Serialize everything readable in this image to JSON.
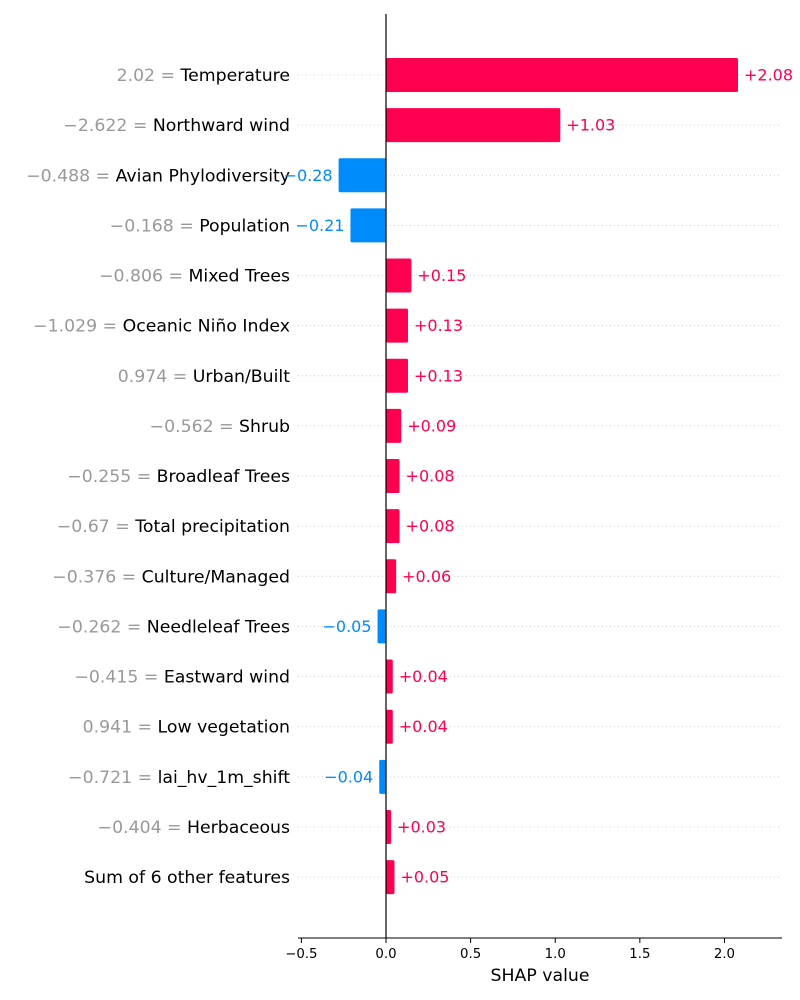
{
  "chart_data": {
    "type": "bar",
    "orientation": "horizontal",
    "xlabel": "SHAP value",
    "xlim": [
      -0.52,
      2.34
    ],
    "x_ticks": [
      -0.5,
      0.0,
      0.5,
      1.0,
      1.5,
      2.0
    ],
    "x_tick_labels": [
      "−0.5",
      "0.0",
      "0.5",
      "1.0",
      "1.5",
      "2.0"
    ],
    "colors": {
      "positive": "#ff0051",
      "negative": "#008bfb",
      "feature_value": "#999999"
    },
    "grid": "dotted horizontal",
    "features": [
      {
        "value_label": "2.02 =",
        "name": "Temperature",
        "shap": 2.08,
        "label": "+2.08"
      },
      {
        "value_label": "−2.622 =",
        "name": "Northward wind",
        "shap": 1.03,
        "label": "+1.03"
      },
      {
        "value_label": "−0.488 =",
        "name": "Avian Phylodiversity",
        "shap": -0.28,
        "label": "−0.28"
      },
      {
        "value_label": "−0.168 =",
        "name": "Population",
        "shap": -0.21,
        "label": "−0.21"
      },
      {
        "value_label": "−0.806 =",
        "name": "Mixed Trees",
        "shap": 0.15,
        "label": "+0.15"
      },
      {
        "value_label": "−1.029 =",
        "name": "Oceanic Niño Index",
        "shap": 0.13,
        "label": "+0.13"
      },
      {
        "value_label": "0.974 =",
        "name": "Urban/Built",
        "shap": 0.13,
        "label": "+0.13"
      },
      {
        "value_label": "−0.562 =",
        "name": "Shrub",
        "shap": 0.09,
        "label": "+0.09"
      },
      {
        "value_label": "−0.255 =",
        "name": "Broadleaf Trees",
        "shap": 0.08,
        "label": "+0.08"
      },
      {
        "value_label": "−0.67 =",
        "name": "Total precipitation",
        "shap": 0.08,
        "label": "+0.08"
      },
      {
        "value_label": "−0.376 =",
        "name": "Culture/Managed",
        "shap": 0.06,
        "label": "+0.06"
      },
      {
        "value_label": "−0.262 =",
        "name": "Needleleaf Trees",
        "shap": -0.05,
        "label": "−0.05"
      },
      {
        "value_label": "−0.415 =",
        "name": "Eastward wind",
        "shap": 0.04,
        "label": "+0.04"
      },
      {
        "value_label": "0.941 =",
        "name": "Low vegetation",
        "shap": 0.04,
        "label": "+0.04"
      },
      {
        "value_label": "−0.721 =",
        "name": "lai_hv_1m_shift",
        "shap": -0.04,
        "label": "−0.04"
      },
      {
        "value_label": "−0.404 =",
        "name": "Herbaceous",
        "shap": 0.03,
        "label": "+0.03"
      },
      {
        "value_label": "",
        "name": "Sum of 6 other features",
        "shap": 0.05,
        "label": "+0.05"
      }
    ]
  }
}
